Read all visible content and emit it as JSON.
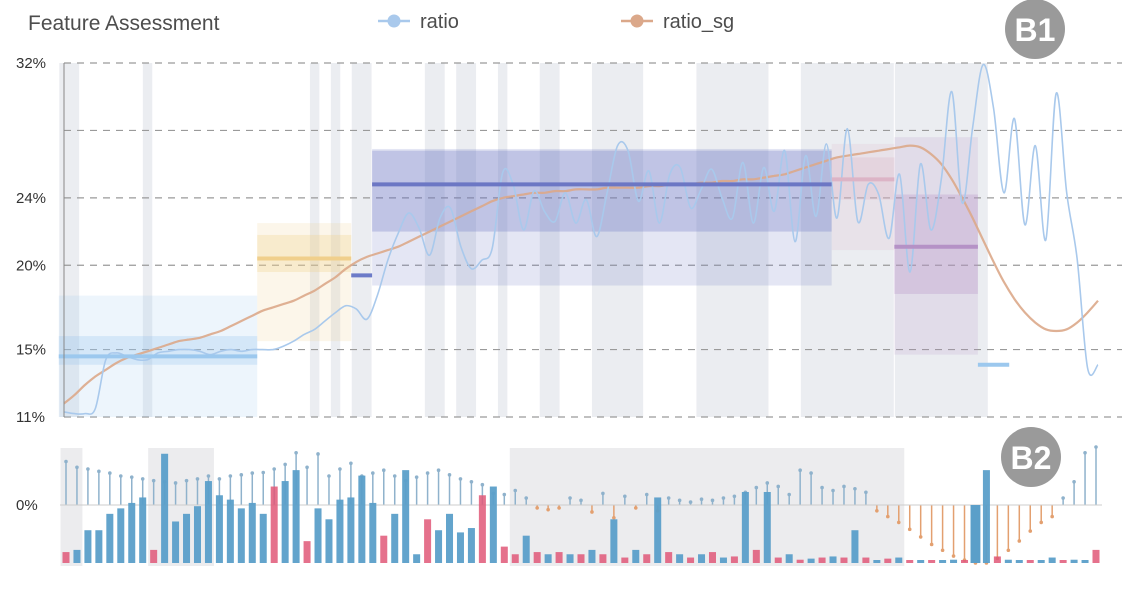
{
  "chart_data": [
    {
      "panel": "B1",
      "type": "line",
      "title": "Feature Assessment",
      "badge": "B1",
      "colors": {
        "ratio": "#a9c9ec",
        "ratio_sg": "#dba88a",
        "grid": "#9a9a9a"
      },
      "y_ticks": [
        {
          "value": 32,
          "label": "32%"
        },
        {
          "value": 24,
          "label": "24%"
        },
        {
          "value": 20,
          "label": "20%"
        },
        {
          "value": 15,
          "label": "15%"
        },
        {
          "value": 11,
          "label": "11%"
        }
      ],
      "ylim": [
        11,
        32
      ],
      "extra_gridlines": [
        28
      ],
      "x_count": 100,
      "series": [
        {
          "name": "ratio",
          "values": [
            11.3,
            11.2,
            11.2,
            11.5,
            14.4,
            14.8,
            14.6,
            14.4,
            14.4,
            14.8,
            14.9,
            15.0,
            15.0,
            14.9,
            14.7,
            14.9,
            15.0,
            14.9,
            15.0,
            15.0,
            15.0,
            15.2,
            15.5,
            15.9,
            16.2,
            16.7,
            17.2,
            17.6,
            17.4,
            16.8,
            18.2,
            20.3,
            21.9,
            23.1,
            22.2,
            20.6,
            22.8,
            23.4,
            21.1,
            19.8,
            20.3,
            21.0,
            25.5,
            24.8,
            22.1,
            24.4,
            23.2,
            22.6,
            24.3,
            22.5,
            23.9,
            21.7,
            24.3,
            27.1,
            26.8,
            23.8,
            25.6,
            22.5,
            25.4,
            25.8,
            23.4,
            24.5,
            25.7,
            24.0,
            22.8,
            26.1,
            22.5,
            25.8,
            23.2,
            26.8,
            21.4,
            26.5,
            22.9,
            27.2,
            22.8,
            28.1,
            22.6,
            24.8,
            24.2,
            21.6,
            25.4,
            19.6,
            26.0,
            22.1,
            25.1,
            30.3,
            23.7,
            28.2,
            31.9,
            29.3,
            24.3,
            28.7,
            22.4,
            27.1,
            21.5,
            30.2,
            24.3,
            20.4,
            13.9,
            14.1
          ],
          "fill_after_index": 98
        },
        {
          "name": "ratio_sg",
          "values": [
            11.8,
            12.3,
            12.9,
            13.4,
            13.8,
            14.2,
            14.5,
            14.7,
            14.9,
            15.1,
            15.3,
            15.5,
            15.6,
            15.7,
            15.9,
            16.1,
            16.4,
            16.7,
            17.0,
            17.3,
            17.5,
            17.7,
            17.9,
            18.2,
            18.5,
            18.9,
            19.3,
            19.8,
            20.2,
            20.5,
            20.7,
            20.9,
            21.1,
            21.4,
            21.7,
            22.0,
            22.3,
            22.6,
            22.9,
            23.2,
            23.5,
            23.8,
            24.0,
            24.1,
            24.2,
            24.3,
            24.3,
            24.4,
            24.4,
            24.5,
            24.5,
            24.5,
            24.6,
            24.6,
            24.6,
            24.6,
            24.7,
            24.7,
            24.8,
            24.8,
            24.8,
            24.9,
            24.9,
            25.0,
            25.0,
            25.1,
            25.1,
            25.2,
            25.3,
            25.4,
            25.6,
            25.8,
            26.0,
            26.2,
            26.4,
            26.5,
            26.6,
            26.7,
            26.8,
            26.9,
            27.0,
            27.1,
            27.0,
            26.6,
            26.0,
            25.1,
            24.0,
            22.8,
            21.5,
            20.2,
            19.0,
            18.0,
            17.2,
            16.6,
            16.2,
            16.1,
            16.2,
            16.6,
            17.2,
            17.9
          ]
        }
      ],
      "segments": [
        {
          "from": 0,
          "to": 18,
          "mean": 14.6,
          "band": [
            11,
            18.2
          ],
          "inner": [
            14.1,
            15.8
          ],
          "color": "#9cc8ee"
        },
        {
          "from": 19,
          "to": 27,
          "mean": 20.4,
          "band": [
            15.5,
            22.5
          ],
          "inner": [
            19.6,
            21.8
          ],
          "color": "#f0cf8c"
        },
        {
          "from": 28,
          "to": 29,
          "mean": 19.4,
          "band": null,
          "inner": null,
          "color": "#6c7bc8"
        },
        {
          "from": 30,
          "to": 73,
          "mean": 24.8,
          "band": [
            18.8,
            26.9
          ],
          "inner": [
            22.0,
            26.8
          ],
          "color": "#6c77c4"
        },
        {
          "from": 74,
          "to": 79,
          "mean": 25.1,
          "band": [
            20.9,
            27.2
          ],
          "inner": [
            23.9,
            26.4
          ],
          "color": "#dcb4c6"
        },
        {
          "from": 80,
          "to": 87,
          "mean": 21.1,
          "band": [
            14.7,
            27.6
          ],
          "inner": [
            18.3,
            24.2
          ],
          "color": "#b592c6"
        },
        {
          "from": 88,
          "to": 90,
          "mean": 14.1,
          "band": null,
          "inner": null,
          "color": "#9cc8ee"
        }
      ],
      "shaded_index_ranges": [
        [
          0,
          1
        ],
        [
          8,
          8
        ],
        [
          24,
          24
        ],
        [
          26,
          26
        ],
        [
          28,
          29
        ],
        [
          35,
          36
        ],
        [
          38,
          39
        ],
        [
          42,
          42
        ],
        [
          46,
          47
        ],
        [
          51,
          55
        ],
        [
          61,
          67
        ],
        [
          71,
          79
        ],
        [
          80,
          88
        ]
      ]
    },
    {
      "panel": "B2",
      "type": "bar",
      "badge": "B2",
      "y_tick": {
        "value": 0,
        "label": "0%"
      },
      "colors": {
        "positive": "#8fb2cc",
        "negative": "#e3a070",
        "bar": "#5b9fc9",
        "bar_low": "#e05878",
        "highlight": "#5b9fc9"
      },
      "shaded_index_ranges": [
        [
          0,
          1
        ],
        [
          8,
          13
        ],
        [
          41,
          76
        ]
      ],
      "stems": [
        0.75,
        0.65,
        0.62,
        0.58,
        0.55,
        0.5,
        0.48,
        0.45,
        0.42,
        0.4,
        0.38,
        0.42,
        0.45,
        0.5,
        0.45,
        0.5,
        0.52,
        0.55,
        0.56,
        0.62,
        0.7,
        0.9,
        0.65,
        0.88,
        0.5,
        0.62,
        0.72,
        0.5,
        0.55,
        0.6,
        0.5,
        0.42,
        0.48,
        0.55,
        0.6,
        0.52,
        0.45,
        0.4,
        0.35,
        0.2,
        0.18,
        0.25,
        0.12,
        -0.05,
        -0.08,
        -0.05,
        0.12,
        0.08,
        -0.12,
        0.2,
        -0.22,
        0.15,
        -0.05,
        0.18,
        -0.1,
        0.12,
        0.08,
        0.05,
        0.1,
        0.08,
        0.12,
        0.15,
        0.22,
        0.3,
        0.38,
        0.32,
        0.18,
        0.6,
        0.55,
        0.3,
        0.25,
        0.32,
        0.28,
        0.22,
        -0.1,
        -0.2,
        -0.3,
        -0.42,
        -0.55,
        -0.68,
        -0.78,
        -0.88,
        -0.95,
        -1.0,
        -1.0,
        -0.92,
        -0.78,
        -0.62,
        -0.45,
        -0.3,
        -0.2,
        0.12,
        0.4,
        0.9,
        1.0
      ],
      "bars": [
        0.1,
        0.12,
        0.3,
        0.3,
        0.45,
        0.5,
        0.55,
        0.6,
        0.12,
        1.0,
        0.38,
        0.45,
        0.52,
        0.75,
        0.62,
        0.58,
        0.5,
        0.55,
        0.45,
        0.7,
        0.75,
        0.85,
        0.2,
        0.5,
        0.4,
        0.58,
        0.6,
        0.8,
        0.55,
        0.25,
        0.45,
        0.85,
        0.08,
        0.4,
        0.3,
        0.45,
        0.28,
        0.32,
        0.62,
        0.7,
        0.15,
        0.08,
        0.25,
        0.1,
        0.08,
        0.1,
        0.08,
        0.08,
        0.12,
        0.08,
        0.4,
        0.05,
        0.12,
        0.08,
        0.6,
        0.1,
        0.08,
        0.05,
        0.08,
        0.1,
        0.05,
        0.06,
        0.65,
        0.12,
        0.65,
        0.05,
        0.08,
        0.03,
        0.04,
        0.05,
        0.06,
        0.05,
        0.3,
        0.05,
        0.02,
        0.04,
        0.05,
        0.02,
        0.02,
        0.02,
        0.02,
        0.03,
        0.02,
        0.03,
        0.85,
        0.06,
        0.03,
        0.02,
        0.02,
        0.02,
        0.05,
        0.02,
        0.03,
        0.02,
        0.12
      ],
      "low_bar_indices": [
        0,
        8,
        19,
        22,
        29,
        33,
        38,
        40,
        41,
        43,
        45,
        47,
        49,
        51,
        53,
        55,
        57,
        59,
        61,
        63,
        65,
        67,
        69,
        71,
        73,
        75,
        77,
        79,
        82,
        85,
        88,
        91,
        94
      ],
      "highlight_index": 83
    }
  ],
  "legend": [
    {
      "label": "ratio",
      "color": "#a9c9ec"
    },
    {
      "label": "ratio_sg",
      "color": "#dba88a"
    }
  ]
}
